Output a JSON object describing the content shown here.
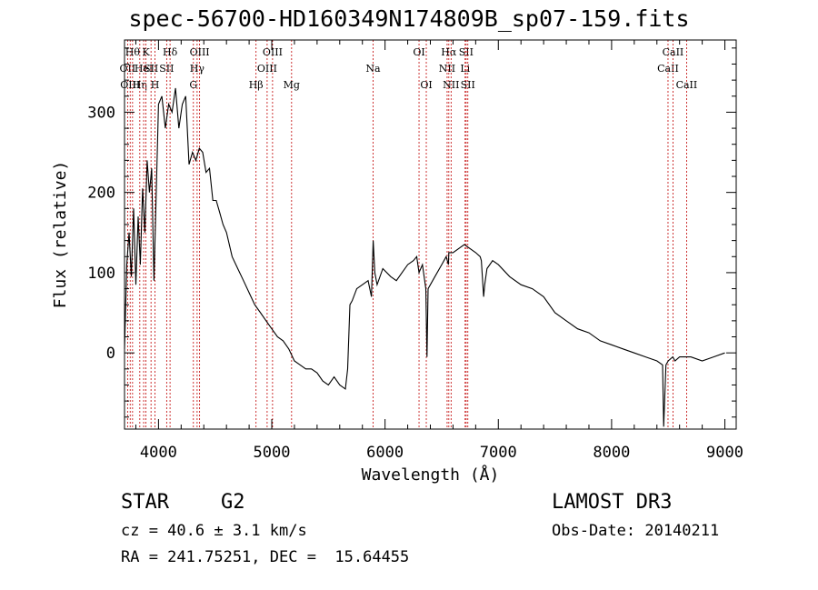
{
  "title": "spec-56700-HD160349N174809B_sp07-159.fits",
  "info": {
    "class": "STAR",
    "subclass": "G2",
    "cz": "cz = 40.6 ± 3.1 km/s",
    "radec": "RA = 241.75251, DEC =  15.64455",
    "survey": "LAMOST DR3",
    "obsdate": "Obs-Date: 20140211"
  },
  "chart_data": {
    "type": "line",
    "title": "spec-56700-HD160349N174809B_sp07-159.fits",
    "xlabel": "Wavelength (Å)",
    "ylabel": "Flux (relative)",
    "xlim": [
      3700,
      9100
    ],
    "ylim": [
      -95,
      390
    ],
    "xticks": [
      4000,
      5000,
      6000,
      7000,
      8000,
      9000
    ],
    "yticks": [
      0,
      100,
      200,
      300
    ],
    "grid": false,
    "series": [
      {
        "x": [
          3700,
          3720,
          3740,
          3760,
          3780,
          3800,
          3820,
          3840,
          3860,
          3880,
          3900,
          3920,
          3940,
          3960,
          3980,
          4000,
          4030,
          4060,
          4090,
          4120,
          4150,
          4180,
          4210,
          4240,
          4270,
          4300,
          4330,
          4360,
          4390,
          4420,
          4450,
          4480,
          4510,
          4540,
          4570,
          4600,
          4650,
          4700,
          4750,
          4800,
          4850,
          4900,
          4950,
          5000,
          5050,
          5100,
          5150,
          5200,
          5250,
          5300,
          5350,
          5400,
          5450,
          5500,
          5550,
          5600,
          5650,
          5670,
          5690,
          5710,
          5750,
          5800,
          5850,
          5880,
          5895,
          5910,
          5930,
          5980,
          6050,
          6100,
          6150,
          6200,
          6250,
          6280,
          6300,
          6330,
          6360,
          6370,
          6380,
          6400,
          6440,
          6500,
          6540,
          6560,
          6563,
          6600,
          6650,
          6700,
          6750,
          6800,
          6840,
          6850,
          6870,
          6880,
          6900,
          6950,
          7000,
          7100,
          7200,
          7300,
          7400,
          7500,
          7600,
          7700,
          7800,
          7900,
          8000,
          8100,
          8200,
          8300,
          8400,
          8450,
          8460,
          8480,
          8500,
          8540,
          8560,
          8600,
          8700,
          8800,
          8900,
          9000
        ],
        "values": [
          5,
          110,
          150,
          95,
          180,
          85,
          170,
          110,
          205,
          150,
          240,
          200,
          230,
          90,
          200,
          310,
          320,
          280,
          310,
          300,
          330,
          280,
          310,
          320,
          235,
          250,
          240,
          255,
          250,
          225,
          230,
          190,
          190,
          175,
          160,
          150,
          120,
          105,
          90,
          75,
          60,
          50,
          40,
          30,
          20,
          15,
          5,
          -10,
          -15,
          -20,
          -20,
          -25,
          -35,
          -40,
          -30,
          -40,
          -45,
          -20,
          60,
          65,
          80,
          85,
          90,
          70,
          140,
          100,
          85,
          105,
          95,
          90,
          100,
          110,
          115,
          120,
          100,
          110,
          80,
          -5,
          80,
          85,
          95,
          110,
          120,
          110,
          125,
          125,
          130,
          135,
          130,
          125,
          120,
          115,
          70,
          85,
          105,
          115,
          110,
          95,
          85,
          80,
          70,
          50,
          40,
          30,
          25,
          15,
          10,
          5,
          0,
          -5,
          -10,
          -15,
          -92,
          -15,
          -10,
          -5,
          -10,
          -5,
          -5,
          -10,
          -5,
          0
        ]
      }
    ],
    "lines": [
      {
        "w": 3727,
        "label": "OII",
        "row": 1
      },
      {
        "w": 3750,
        "label": "OIII",
        "row": 2
      },
      {
        "w": 3771,
        "label": "Hθ",
        "row": 0
      },
      {
        "w": 3835,
        "label": "Hη",
        "row": 2
      },
      {
        "w": 3869,
        "label": "HeI",
        "row": 1
      },
      {
        "w": 3889,
        "label": "K",
        "row": 0
      },
      {
        "w": 3934,
        "label": "SII",
        "row": 1
      },
      {
        "w": 3969,
        "label": "H",
        "row": 2
      },
      {
        "w": 4072,
        "label": "SII",
        "row": 1
      },
      {
        "w": 4102,
        "label": "Hδ",
        "row": 0
      },
      {
        "w": 4308,
        "label": "G",
        "row": 2
      },
      {
        "w": 4341,
        "label": "Hγ",
        "row": 1
      },
      {
        "w": 4363,
        "label": "OIII",
        "row": 0
      },
      {
        "w": 4861,
        "label": "Hβ",
        "row": 2
      },
      {
        "w": 4959,
        "label": "OIII",
        "row": 1
      },
      {
        "w": 5007,
        "label": "OIII",
        "row": 0
      },
      {
        "w": 5175,
        "label": "Mg",
        "row": 2
      },
      {
        "w": 5894,
        "label": "Na",
        "row": 1
      },
      {
        "w": 6300,
        "label": "OI",
        "row": 0
      },
      {
        "w": 6364,
        "label": "OI",
        "row": 2
      },
      {
        "w": 6548,
        "label": "NII",
        "row": 1
      },
      {
        "w": 6563,
        "label": "Hα",
        "row": 0
      },
      {
        "w": 6583,
        "label": "NII",
        "row": 2
      },
      {
        "w": 6707,
        "label": "Li",
        "row": 1
      },
      {
        "w": 6716,
        "label": "SII",
        "row": 0
      },
      {
        "w": 6731,
        "label": "SII",
        "row": 2
      },
      {
        "w": 8498,
        "label": "CaII",
        "row": 1
      },
      {
        "w": 8542,
        "label": "CaII",
        "row": 0
      },
      {
        "w": 8662,
        "label": "CaII",
        "row": 2
      }
    ]
  }
}
